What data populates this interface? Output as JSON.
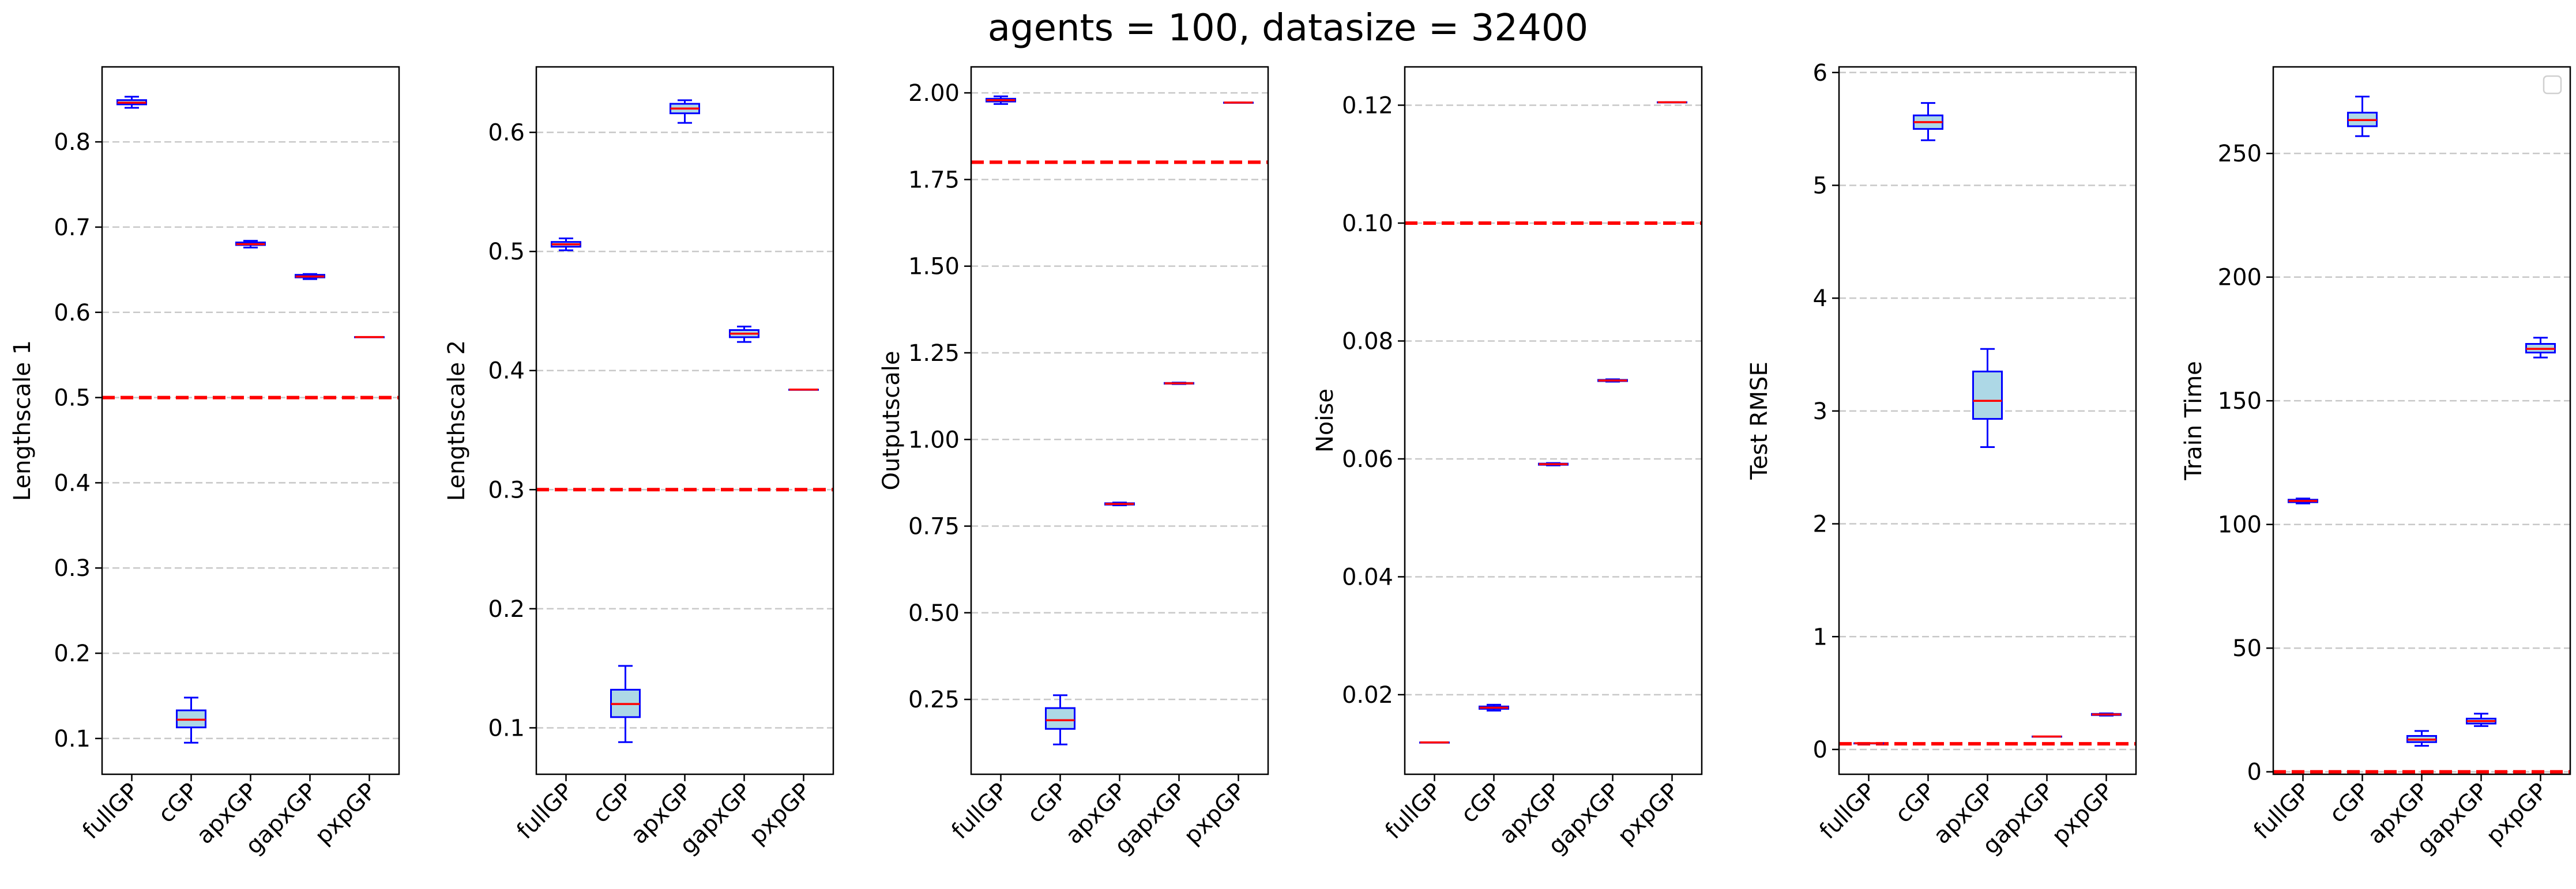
{
  "figure": {
    "title": "agents = 100, datasize = 32400"
  },
  "colors": {
    "box_edge": "#0000ff",
    "box_fill": "#add8e6",
    "median": "#ff0000",
    "reference_line": "#ff0000",
    "grid": "#c8c8c8"
  },
  "chart_data": [
    {
      "type": "box",
      "ylabel": "Lengthscale 1",
      "categories": [
        "fullGP",
        "cGP",
        "apxGP",
        "gapxGP",
        "pxpGP"
      ],
      "ylim": [
        0.058,
        0.888
      ],
      "yticks": [
        0.1,
        0.2,
        0.3,
        0.4,
        0.5,
        0.6,
        0.7,
        0.8
      ],
      "ytick_labels": [
        "0.1",
        "0.2",
        "0.3",
        "0.4",
        "0.5",
        "0.6",
        "0.7",
        "0.8"
      ],
      "reference_line": 0.5,
      "grid": "horizontal dashed",
      "boxes": [
        {
          "whislo": 0.84,
          "q1": 0.844,
          "med": 0.846,
          "q3": 0.849,
          "whishi": 0.853
        },
        {
          "whislo": 0.095,
          "q1": 0.113,
          "med": 0.122,
          "q3": 0.133,
          "whishi": 0.148
        },
        {
          "whislo": 0.676,
          "q1": 0.679,
          "med": 0.68,
          "q3": 0.682,
          "whishi": 0.684
        },
        {
          "whislo": 0.639,
          "q1": 0.641,
          "med": 0.642,
          "q3": 0.644,
          "whishi": 0.645
        },
        {
          "whislo": 0.571,
          "q1": 0.571,
          "med": 0.571,
          "q3": 0.571,
          "whishi": 0.571
        }
      ]
    },
    {
      "type": "box",
      "ylabel": "Lengthscale 2",
      "categories": [
        "fullGP",
        "cGP",
        "apxGP",
        "gapxGP",
        "pxpGP"
      ],
      "ylim": [
        0.061,
        0.655
      ],
      "yticks": [
        0.1,
        0.2,
        0.3,
        0.4,
        0.5,
        0.6
      ],
      "ytick_labels": [
        "0.1",
        "0.2",
        "0.3",
        "0.4",
        "0.5",
        "0.6"
      ],
      "reference_line": 0.3,
      "grid": "horizontal dashed",
      "boxes": [
        {
          "whislo": 0.501,
          "q1": 0.504,
          "med": 0.506,
          "q3": 0.508,
          "whishi": 0.511
        },
        {
          "whislo": 0.088,
          "q1": 0.109,
          "med": 0.12,
          "q3": 0.132,
          "whishi": 0.152
        },
        {
          "whislo": 0.608,
          "q1": 0.616,
          "med": 0.62,
          "q3": 0.624,
          "whishi": 0.627
        },
        {
          "whislo": 0.424,
          "q1": 0.428,
          "med": 0.431,
          "q3": 0.434,
          "whishi": 0.437
        },
        {
          "whislo": 0.384,
          "q1": 0.384,
          "med": 0.384,
          "q3": 0.384,
          "whishi": 0.384
        }
      ]
    },
    {
      "type": "box",
      "ylabel": "Outputscale",
      "categories": [
        "fullGP",
        "cGP",
        "apxGP",
        "gapxGP",
        "pxpGP"
      ],
      "ylim": [
        0.034,
        2.075
      ],
      "yticks": [
        0.25,
        0.5,
        0.75,
        1.0,
        1.25,
        1.5,
        1.75,
        2.0
      ],
      "ytick_labels": [
        "0.25",
        "0.50",
        "0.75",
        "1.00",
        "1.25",
        "1.50",
        "1.75",
        "2.00"
      ],
      "reference_line": 1.8,
      "grid": "horizontal dashed",
      "boxes": [
        {
          "whislo": 1.968,
          "q1": 1.975,
          "med": 1.979,
          "q3": 1.983,
          "whishi": 1.99
        },
        {
          "whislo": 0.12,
          "q1": 0.165,
          "med": 0.19,
          "q3": 0.225,
          "whishi": 0.262
        },
        {
          "whislo": 0.81,
          "q1": 0.812,
          "med": 0.814,
          "q3": 0.816,
          "whishi": 0.818
        },
        {
          "whislo": 1.16,
          "q1": 1.161,
          "med": 1.162,
          "q3": 1.163,
          "whishi": 1.164
        },
        {
          "whislo": 1.972,
          "q1": 1.972,
          "med": 1.972,
          "q3": 1.972,
          "whishi": 1.972
        }
      ]
    },
    {
      "type": "box",
      "ylabel": "Noise",
      "categories": [
        "fullGP",
        "cGP",
        "apxGP",
        "gapxGP",
        "pxpGP"
      ],
      "ylim": [
        0.0065,
        0.1265
      ],
      "yticks": [
        0.02,
        0.04,
        0.06,
        0.08,
        0.1,
        0.12
      ],
      "ytick_labels": [
        "0.02",
        "0.04",
        "0.06",
        "0.08",
        "0.10",
        "0.12"
      ],
      "reference_line": 0.1,
      "grid": "horizontal dashed",
      "boxes": [
        {
          "whislo": 0.0119,
          "q1": 0.0119,
          "med": 0.0119,
          "q3": 0.0119,
          "whishi": 0.0119
        },
        {
          "whislo": 0.0173,
          "q1": 0.0176,
          "med": 0.0178,
          "q3": 0.018,
          "whishi": 0.0183
        },
        {
          "whislo": 0.0589,
          "q1": 0.059,
          "med": 0.0591,
          "q3": 0.0592,
          "whishi": 0.0593
        },
        {
          "whislo": 0.0731,
          "q1": 0.0732,
          "med": 0.0733,
          "q3": 0.0734,
          "whishi": 0.0735
        },
        {
          "whislo": 0.1205,
          "q1": 0.1205,
          "med": 0.1205,
          "q3": 0.1205,
          "whishi": 0.1205
        }
      ]
    },
    {
      "type": "box",
      "ylabel": "Test RMSE",
      "categories": [
        "fullGP",
        "cGP",
        "apxGP",
        "gapxGP",
        "pxpGP"
      ],
      "ylim": [
        -0.22,
        6.05
      ],
      "yticks": [
        0,
        1,
        2,
        3,
        4,
        5,
        6
      ],
      "ytick_labels": [
        "0",
        "1",
        "2",
        "3",
        "4",
        "5",
        "6"
      ],
      "reference_line": 0.05,
      "grid": "horizontal dashed",
      "boxes": [
        {
          "whislo": 0.055,
          "q1": 0.055,
          "med": 0.055,
          "q3": 0.055,
          "whishi": 0.055
        },
        {
          "whislo": 5.4,
          "q1": 5.5,
          "med": 5.56,
          "q3": 5.62,
          "whishi": 5.73
        },
        {
          "whislo": 2.68,
          "q1": 2.93,
          "med": 3.09,
          "q3": 3.35,
          "whishi": 3.55
        },
        {
          "whislo": 0.115,
          "q1": 0.115,
          "med": 0.115,
          "q3": 0.115,
          "whishi": 0.115
        },
        {
          "whislo": 0.3,
          "q1": 0.305,
          "med": 0.31,
          "q3": 0.315,
          "whishi": 0.32
        }
      ]
    },
    {
      "type": "box",
      "ylabel": "Train Time",
      "categories": [
        "fullGP",
        "cGP",
        "apxGP",
        "gapxGP",
        "pxpGP"
      ],
      "ylim": [
        -1.0,
        285.0
      ],
      "yticks": [
        0,
        50,
        100,
        150,
        200,
        250
      ],
      "ytick_labels": [
        "0",
        "50",
        "100",
        "150",
        "200",
        "250"
      ],
      "reference_line": 0,
      "grid": "horizontal dashed",
      "legend": "top-right (empty)",
      "boxes": [
        {
          "whislo": 108.5,
          "q1": 109.0,
          "med": 109.5,
          "q3": 110.0,
          "whishi": 110.5
        },
        {
          "whislo": 257.0,
          "q1": 261.0,
          "med": 263.5,
          "q3": 266.5,
          "whishi": 273.0
        },
        {
          "whislo": 10.5,
          "q1": 12.0,
          "med": 13.0,
          "q3": 14.5,
          "whishi": 16.5
        },
        {
          "whislo": 18.5,
          "q1": 19.5,
          "med": 20.5,
          "q3": 21.5,
          "whishi": 23.5
        },
        {
          "whislo": 167.5,
          "q1": 169.5,
          "med": 171.0,
          "q3": 173.0,
          "whishi": 175.5
        }
      ]
    }
  ]
}
